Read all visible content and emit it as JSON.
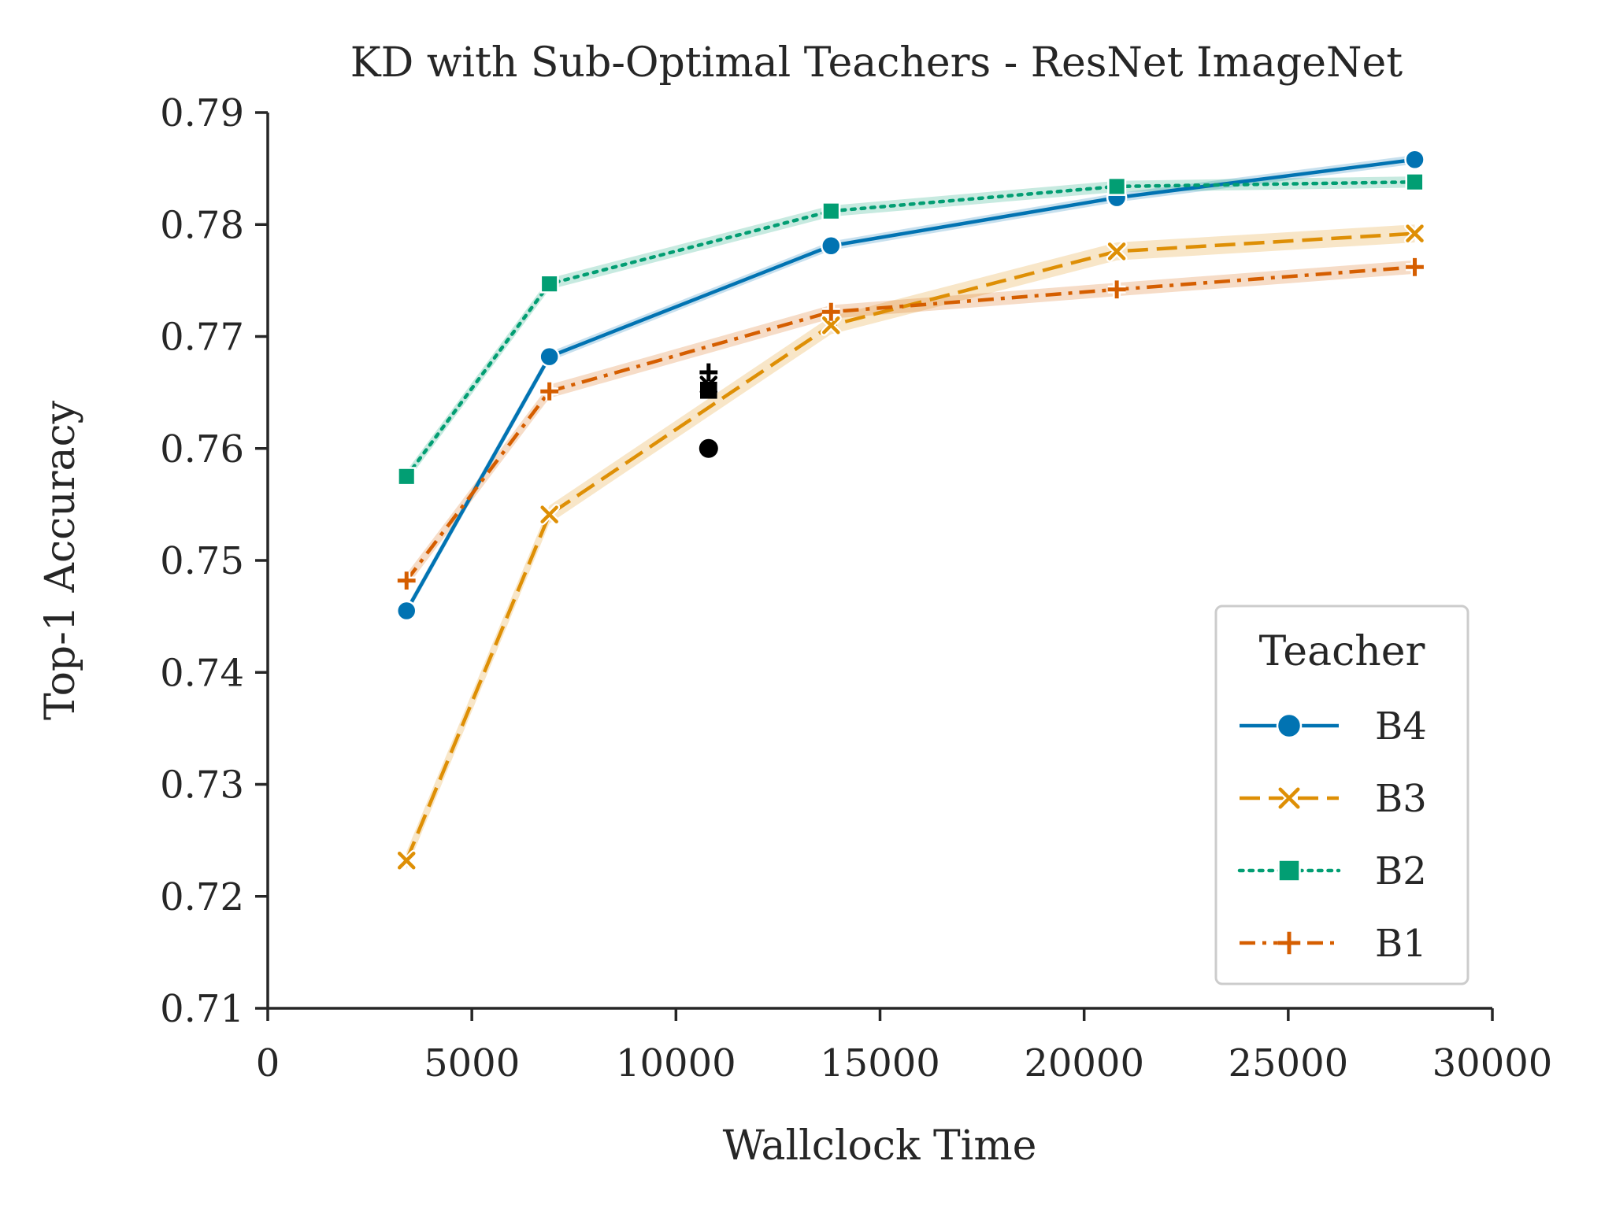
{
  "chart_data": {
    "type": "line",
    "title": "KD with Sub-Optimal Teachers - ResNet ImageNet",
    "xlabel": "Wallclock Time",
    "ylabel": "Top-1 Accuracy",
    "xlim": [
      0,
      30000
    ],
    "ylim": [
      0.71,
      0.79
    ],
    "xticks": [
      0,
      5000,
      10000,
      15000,
      20000,
      25000,
      30000
    ],
    "xtick_labels": [
      "0",
      "5000",
      "10000",
      "15000",
      "20000",
      "25000",
      "30000"
    ],
    "yticks": [
      0.71,
      0.72,
      0.73,
      0.74,
      0.75,
      0.76,
      0.77,
      0.78,
      0.79
    ],
    "ytick_labels": [
      "0.71",
      "0.72",
      "0.73",
      "0.74",
      "0.75",
      "0.76",
      "0.77",
      "0.78",
      "0.79"
    ],
    "grid": false,
    "legend": {
      "title": "Teacher",
      "position": "lower-right"
    },
    "series": [
      {
        "name": "B4",
        "color": "#0173b2",
        "marker": "circle",
        "dash": "solid",
        "band": 0.0004,
        "x": [
          3400,
          6900,
          13800,
          20800,
          28100
        ],
        "y": [
          0.7455,
          0.7682,
          0.7781,
          0.7824,
          0.7858
        ]
      },
      {
        "name": "B3",
        "color": "#de8f05",
        "marker": "x",
        "dash": "dashed",
        "band": 0.0008,
        "x": [
          3400,
          6900,
          13800,
          20800,
          28100
        ],
        "y": [
          0.7232,
          0.7541,
          0.771,
          0.7776,
          0.7792
        ]
      },
      {
        "name": "B2",
        "color": "#029e73",
        "marker": "square",
        "dash": "dotted",
        "band": 0.0005,
        "x": [
          3400,
          6900,
          13800,
          20800,
          28100
        ],
        "y": [
          0.7575,
          0.7747,
          0.7812,
          0.7834,
          0.7838
        ]
      },
      {
        "name": "B1",
        "color": "#d55e00",
        "marker": "plus",
        "dash": "dashdot",
        "band": 0.0006,
        "x": [
          3400,
          6900,
          13800,
          20800,
          28100
        ],
        "y": [
          0.7482,
          0.7651,
          0.7722,
          0.7742,
          0.7762
        ]
      }
    ],
    "reference_points": {
      "color": "#000000",
      "points": [
        {
          "x": 10800,
          "y": 0.76,
          "marker": "circle"
        },
        {
          "x": 10800,
          "y": 0.7652,
          "marker": "square"
        },
        {
          "x": 10800,
          "y": 0.7657,
          "marker": "x"
        },
        {
          "x": 10800,
          "y": 0.7668,
          "marker": "plus"
        }
      ]
    }
  }
}
